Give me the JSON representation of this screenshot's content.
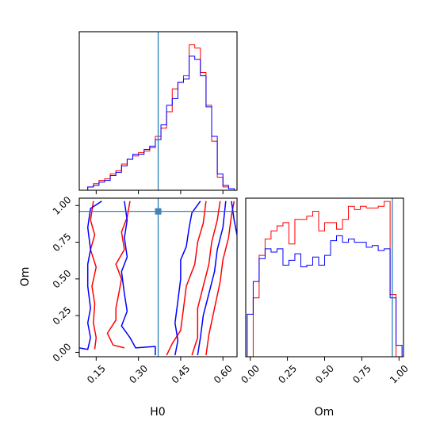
{
  "chart_data": [
    {
      "panel": "H0 marginal",
      "type": "histogram",
      "xlim": [
        0.09,
        0.65
      ],
      "x_ticks": [
        0.15,
        0.3,
        0.45,
        0.6
      ],
      "y_ticks_shown": false,
      "bin_edges": [
        0.12,
        0.14,
        0.16,
        0.18,
        0.2,
        0.22,
        0.24,
        0.26,
        0.28,
        0.3,
        0.32,
        0.34,
        0.36,
        0.38,
        0.4,
        0.42,
        0.44,
        0.46,
        0.48,
        0.5,
        0.52,
        0.54,
        0.56,
        0.58,
        0.6,
        0.62,
        0.64
      ],
      "series": [
        {
          "color": "#ff0000",
          "values": [
            0.02,
            0.04,
            0.06,
            0.07,
            0.1,
            0.12,
            0.16,
            0.19,
            0.21,
            0.23,
            0.24,
            0.26,
            0.33,
            0.38,
            0.48,
            0.62,
            0.66,
            0.7,
            0.89,
            0.87,
            0.72,
            0.52,
            0.3,
            0.08,
            0.02,
            0.01
          ]
        },
        {
          "color": "#0000ff",
          "values": [
            0.02,
            0.03,
            0.05,
            0.06,
            0.09,
            0.11,
            0.15,
            0.19,
            0.22,
            0.22,
            0.25,
            0.27,
            0.31,
            0.4,
            0.52,
            0.56,
            0.66,
            0.68,
            0.82,
            0.8,
            0.7,
            0.51,
            0.33,
            0.1,
            0.03,
            0.01
          ]
        }
      ],
      "reference_line": {
        "axis": "x",
        "value": 0.37,
        "color": "#1f77b4"
      }
    },
    {
      "panel": "H0 vs Om joint",
      "type": "contour",
      "xlabel": "H0",
      "ylabel": "Om",
      "xlim": [
        0.09,
        0.65
      ],
      "ylim": [
        -0.03,
        1.05
      ],
      "x_ticks": [
        0.15,
        0.3,
        0.45,
        0.6
      ],
      "y_ticks": [
        0.0,
        0.25,
        0.5,
        0.75,
        1.0
      ],
      "series": [
        {
          "color": "#ff0000",
          "contours": [
            [
              [
                0.145,
                0.02
              ],
              [
                0.15,
                0.1
              ],
              [
                0.14,
                0.2
              ],
              [
                0.145,
                0.33
              ],
              [
                0.135,
                0.45
              ],
              [
                0.15,
                0.58
              ],
              [
                0.13,
                0.7
              ],
              [
                0.145,
                0.8
              ],
              [
                0.13,
                0.9
              ],
              [
                0.14,
                1.03
              ]
            ],
            [
              [
                0.27,
                1.03
              ],
              [
                0.26,
                0.92
              ],
              [
                0.24,
                0.82
              ],
              [
                0.25,
                0.7
              ],
              [
                0.22,
                0.6
              ],
              [
                0.24,
                0.5
              ],
              [
                0.23,
                0.4
              ],
              [
                0.22,
                0.3
              ],
              [
                0.22,
                0.22
              ],
              [
                0.19,
                0.13
              ],
              [
                0.21,
                0.05
              ],
              [
                0.25,
                0.03
              ]
            ],
            [
              [
                0.4,
                -0.02
              ],
              [
                0.42,
                0.06
              ],
              [
                0.45,
                0.15
              ],
              [
                0.46,
                0.3
              ],
              [
                0.47,
                0.45
              ],
              [
                0.5,
                0.6
              ],
              [
                0.51,
                0.75
              ],
              [
                0.53,
                0.88
              ],
              [
                0.54,
                1.03
              ]
            ],
            [
              [
                0.49,
                -0.02
              ],
              [
                0.51,
                0.1
              ],
              [
                0.51,
                0.3
              ],
              [
                0.53,
                0.45
              ],
              [
                0.55,
                0.6
              ],
              [
                0.56,
                0.75
              ],
              [
                0.58,
                0.9
              ],
              [
                0.59,
                1.03
              ]
            ],
            [
              [
                0.54,
                -0.02
              ],
              [
                0.55,
                0.12
              ],
              [
                0.57,
                0.3
              ],
              [
                0.59,
                0.48
              ],
              [
                0.6,
                0.63
              ],
              [
                0.62,
                0.78
              ],
              [
                0.63,
                0.93
              ],
              [
                0.64,
                1.03
              ]
            ]
          ]
        },
        {
          "color": "#0000ff",
          "contours": [
            [
              [
                0.09,
                0.03
              ],
              [
                0.12,
                0.02
              ],
              [
                0.13,
                0.1
              ],
              [
                0.12,
                0.2
              ],
              [
                0.13,
                0.3
              ],
              [
                0.12,
                0.45
              ],
              [
                0.12,
                0.6
              ],
              [
                0.13,
                0.7
              ],
              [
                0.12,
                0.85
              ],
              [
                0.13,
                0.98
              ],
              [
                0.17,
                1.03
              ]
            ],
            [
              [
                0.36,
                -0.02
              ],
              [
                0.36,
                0.04
              ],
              [
                0.29,
                0.03
              ],
              [
                0.27,
                0.1
              ],
              [
                0.24,
                0.18
              ],
              [
                0.26,
                0.28
              ],
              [
                0.25,
                0.4
              ],
              [
                0.24,
                0.55
              ],
              [
                0.26,
                0.65
              ],
              [
                0.25,
                0.78
              ],
              [
                0.26,
                0.9
              ],
              [
                0.25,
                1.03
              ]
            ],
            [
              [
                0.43,
                -0.02
              ],
              [
                0.44,
                0.08
              ],
              [
                0.43,
                0.2
              ],
              [
                0.44,
                0.35
              ],
              [
                0.45,
                0.5
              ],
              [
                0.45,
                0.63
              ],
              [
                0.47,
                0.72
              ],
              [
                0.48,
                0.85
              ],
              [
                0.49,
                0.95
              ],
              [
                0.52,
                1.03
              ]
            ],
            [
              [
                0.51,
                -0.02
              ],
              [
                0.52,
                0.1
              ],
              [
                0.53,
                0.25
              ],
              [
                0.55,
                0.4
              ],
              [
                0.57,
                0.55
              ],
              [
                0.58,
                0.7
              ],
              [
                0.6,
                0.85
              ],
              [
                0.61,
                1.03
              ]
            ],
            [
              [
                0.63,
                1.03
              ],
              [
                0.64,
                0.9
              ],
              [
                0.65,
                0.8
              ]
            ]
          ]
        }
      ],
      "marker": {
        "x": 0.37,
        "y": 0.96,
        "color": "#4682b4"
      },
      "reference_lines": [
        {
          "axis": "x",
          "value": 0.37,
          "color": "#1f77b4"
        },
        {
          "axis": "y",
          "value": 0.96,
          "color": "#1f77b4"
        }
      ]
    },
    {
      "panel": "Om marginal",
      "type": "histogram",
      "xlabel": "Om",
      "xlim": [
        -0.03,
        1.03
      ],
      "x_ticks": [
        0.0,
        0.25,
        0.5,
        0.75,
        1.0
      ],
      "y_ticks_shown": false,
      "bin_edges": [
        -0.02,
        0.02,
        0.06,
        0.1,
        0.14,
        0.18,
        0.22,
        0.26,
        0.3,
        0.34,
        0.38,
        0.42,
        0.46,
        0.5,
        0.54,
        0.58,
        0.62,
        0.66,
        0.7,
        0.74,
        0.78,
        0.82,
        0.86,
        0.9,
        0.94,
        0.98,
        1.02
      ],
      "series": [
        {
          "color": "#ff0000",
          "values": [
            0.0,
            0.36,
            0.62,
            0.72,
            0.77,
            0.8,
            0.82,
            0.69,
            0.84,
            0.84,
            0.86,
            0.89,
            0.77,
            0.82,
            0.82,
            0.78,
            0.84,
            0.92,
            0.9,
            0.92,
            0.91,
            0.91,
            0.92,
            0.95,
            0.38,
            0.0
          ]
        },
        {
          "color": "#0000ff",
          "values": [
            0.26,
            0.46,
            0.6,
            0.66,
            0.64,
            0.66,
            0.56,
            0.59,
            0.63,
            0.55,
            0.56,
            0.61,
            0.56,
            0.62,
            0.71,
            0.74,
            0.7,
            0.72,
            0.7,
            0.7,
            0.67,
            0.68,
            0.65,
            0.66,
            0.36,
            0.07
          ]
        }
      ],
      "reference_line": {
        "axis": "x",
        "value": 0.955,
        "color": "#1f77b4"
      }
    }
  ]
}
